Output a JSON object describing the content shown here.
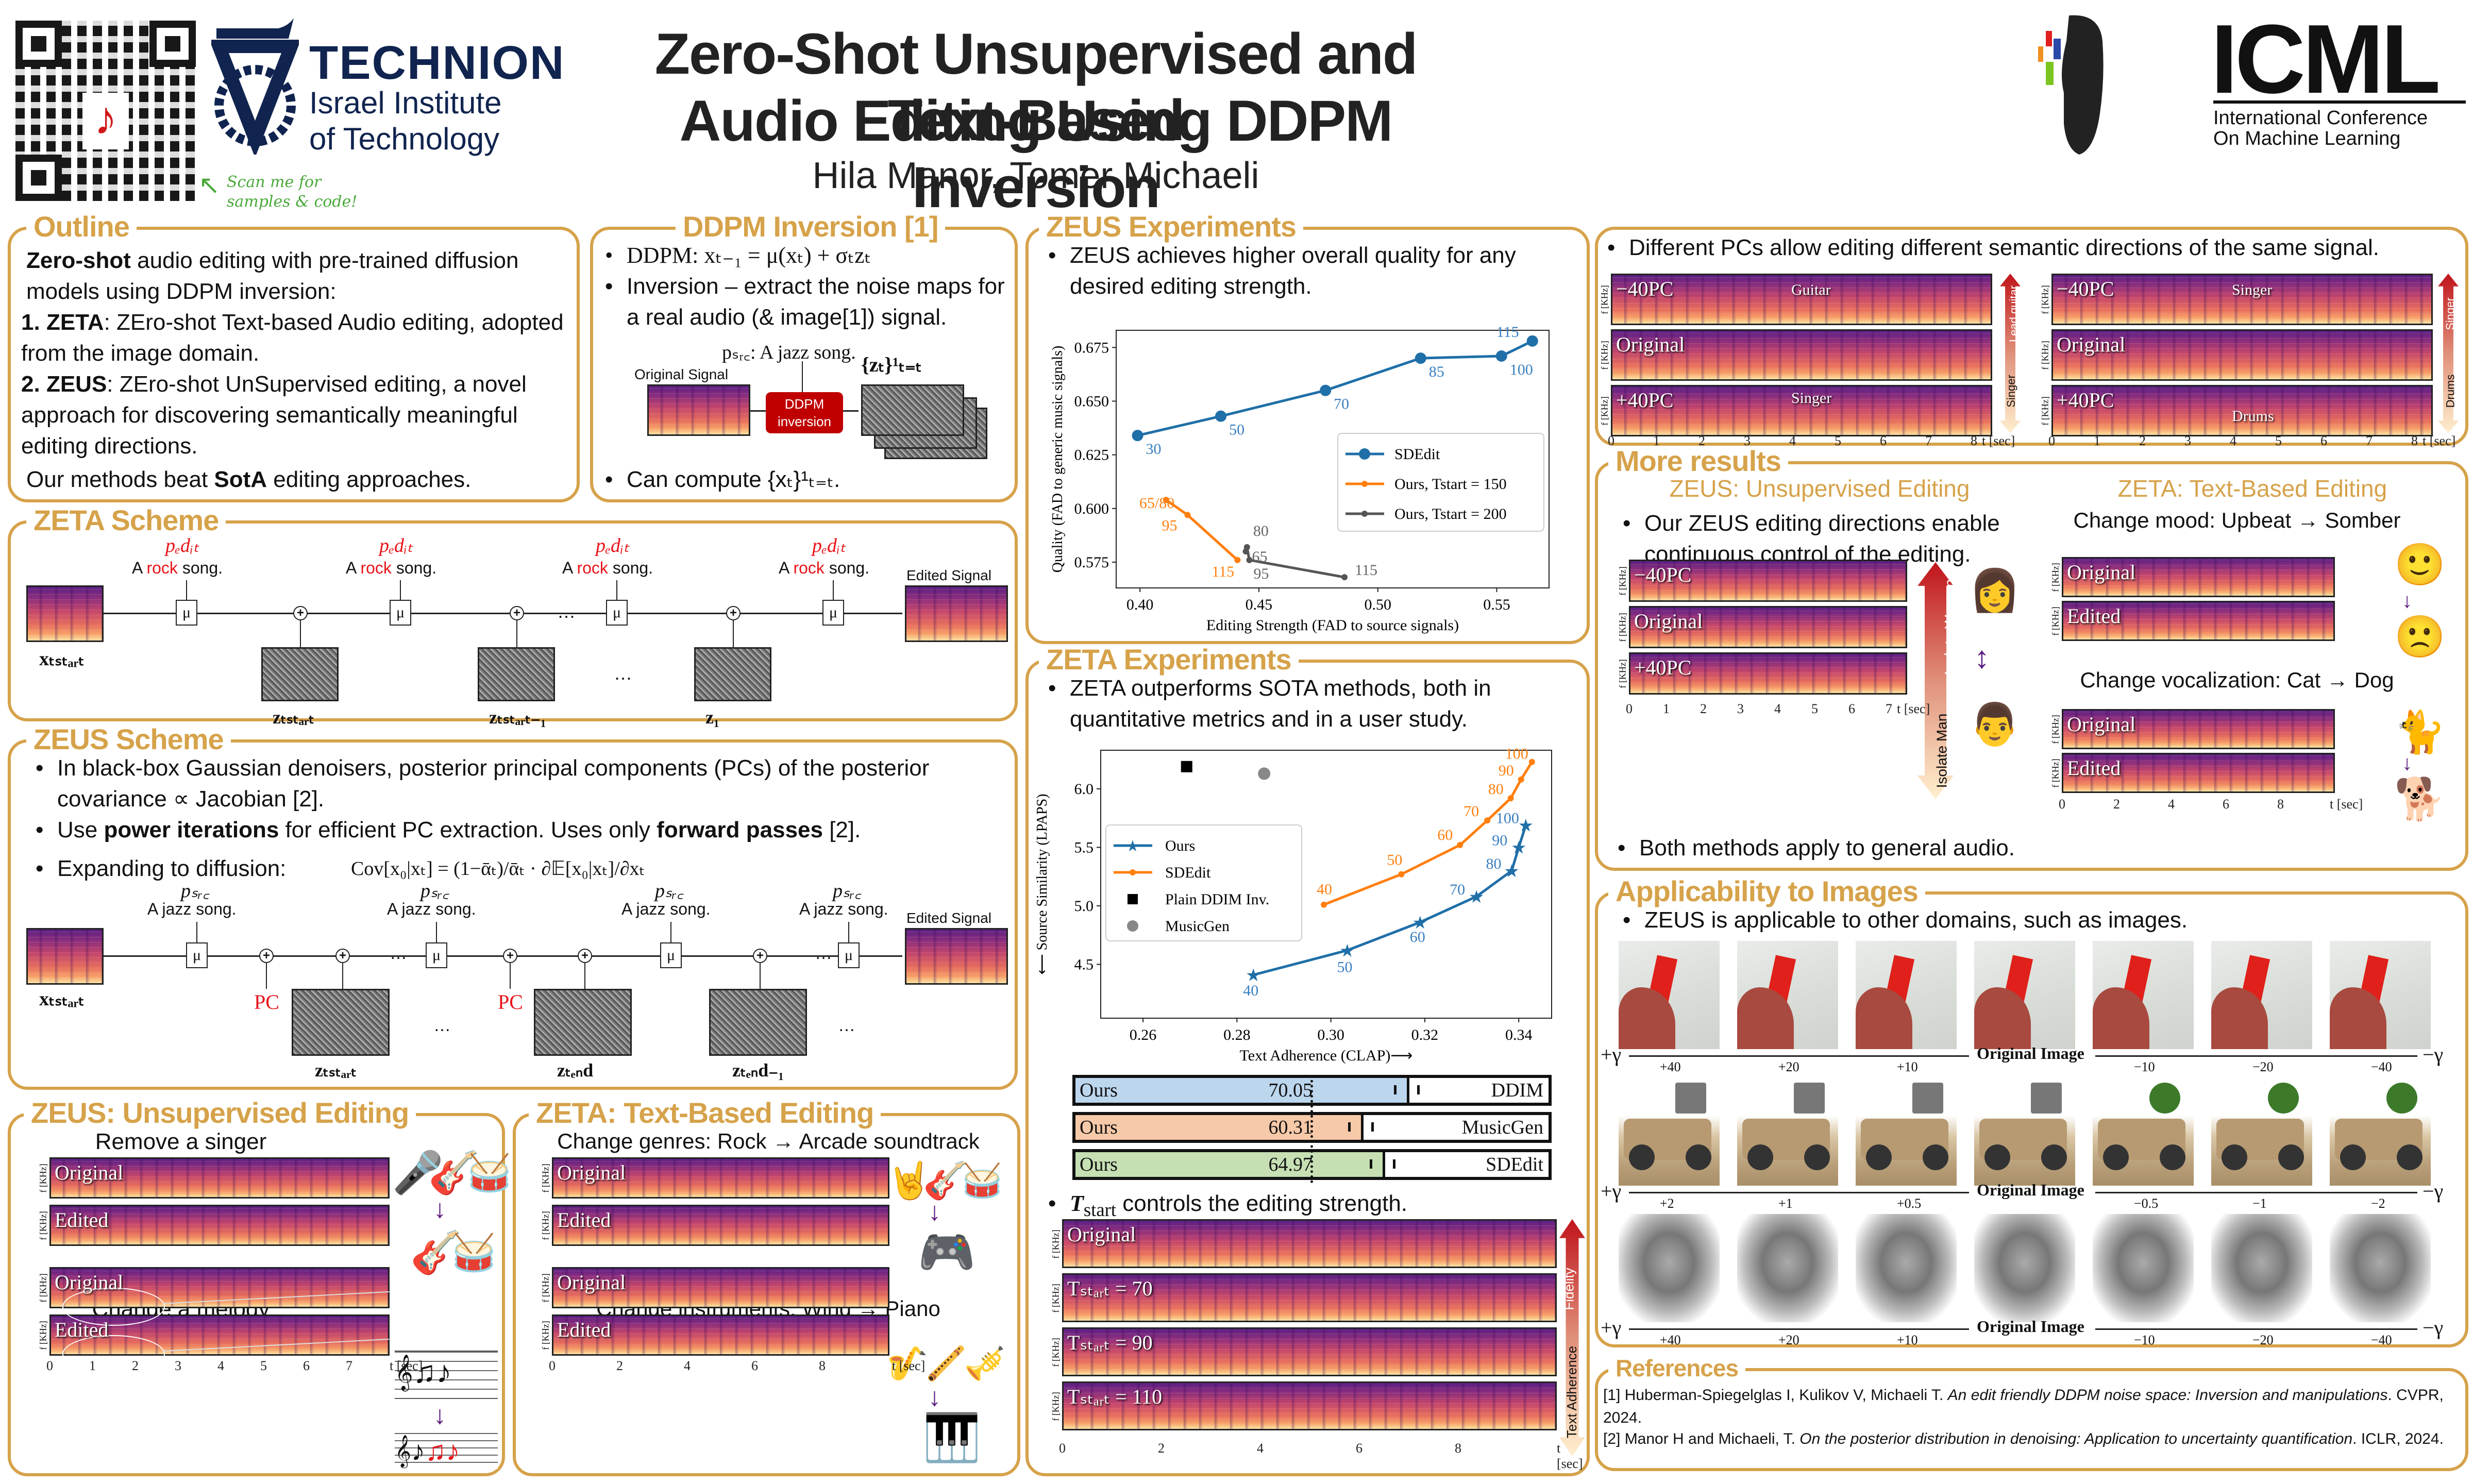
{
  "header": {
    "title_line1": "Zero-Shot Unsupervised and Text-Based",
    "title_line2": "Audio Editing Using DDPM Inversion",
    "authors": "Hila Manor, Tomer Michaeli",
    "qr_caption_line1": "Scan me for",
    "qr_caption_line2": "samples & code!",
    "technion_name": "TECHNION",
    "technion_sub1": "Israel Institute",
    "technion_sub2": "of Technology",
    "icml_name": "ICML",
    "icml_sub1": "International Conference",
    "icml_sub2": "On Machine Learning"
  },
  "outline": {
    "title": "Outline",
    "intro_bold": "Zero-shot",
    "intro_rest": " audio editing with pre-trained diffusion models using DDPM inversion:",
    "item1_num": "1.",
    "item1_bold": "ZETA",
    "item1_rest": ": ZEro-shot Text-based Audio editing, adopted from the image domain.",
    "item2_num": "2.",
    "item2_bold": "ZEUS",
    "item2_rest": ": ZEro-shot UnSupervised editing, a novel approach for discovering semantically meaningful editing directions.",
    "closing_pre": "Our methods beat ",
    "closing_bold": "SotA",
    "closing_post": " editing approaches."
  },
  "ddpm_inversion": {
    "title": "DDPM Inversion [1]",
    "bullet1": "DDPM: xₜ₋₁ = μ(xₜ) + σₜzₜ",
    "bullet2": "Inversion – extract the noise maps for a real audio (& image[1]) signal.",
    "psrc_label": "pₛᵣ꜀: A jazz song.",
    "original_signal": "Original Signal",
    "block_label_line1": "DDPM",
    "block_label_line2": "inversion",
    "noise_label": "{zₜ}¹ₜ₌ₜ",
    "bullet3": "Can compute {xₜ}¹ₜ₌ₜ."
  },
  "zeta_scheme": {
    "title": "ZETA Scheme",
    "p_edit": "pₑdᵢₜ",
    "prompt_pre": "A ",
    "prompt_red": "rock",
    "prompt_post": " song.",
    "edited_signal": "Edited Signal",
    "x_label": "xₜₛₜₐᵣₜ",
    "noise_labels": [
      "zₜₛₜₐᵣₜ",
      "zₜₛₜₐᵣₜ₋₁",
      "z₁"
    ],
    "ellipsis": "…",
    "mu": "μ",
    "plus": "+"
  },
  "zeus_scheme": {
    "title": "ZEUS Scheme",
    "bullet1": "In black-box Gaussian denoisers, posterior principal components (PCs) of the posterior covariance ∝ Jacobian [2].",
    "bullet2_pre": "Use ",
    "bullet2_bold1": "power iterations",
    "bullet2_mid": " for efficient PC extraction. Uses only ",
    "bullet2_bold2": "forward passes",
    "bullet2_post": " [2].",
    "bullet3": "Expanding to diffusion:",
    "formula": "Cov[x₀|xₜ] = (1−ᾱₜ)/ᾱₜ · ∂𝔼[x₀|xₜ]/∂xₜ",
    "p_src": "pₛᵣ꜀",
    "prompt": "A jazz song.",
    "edited_signal": "Edited Signal",
    "pc_label": "PC",
    "x_label": "xₜₛₜₐᵣₜ",
    "noise_labels": [
      "zₜₛₜₐᵣₜ",
      "zₜₑₙd",
      "zₜₑₙd₋₁"
    ],
    "ellipsis": "…",
    "mu": "μ",
    "plus": "+"
  },
  "zeus_editing": {
    "title": "ZEUS: Unsupervised Editing",
    "example1_title": "Remove a singer",
    "example2_title": "Change a melody",
    "label_original": "Original",
    "label_edited": "Edited",
    "y_axis": "f [KHz]",
    "y_ticks": [
      "0",
      "5"
    ],
    "x_ticks": [
      "0",
      "1",
      "2",
      "3",
      "4",
      "5",
      "6",
      "7"
    ],
    "x_unit": "t [sec]",
    "icons_before": [
      "microphone-icon",
      "guitar-icon",
      "drums-icon"
    ],
    "icons_after": [
      "guitar-icon",
      "drums-icon"
    ]
  },
  "zeta_editing": {
    "title": "ZETA: Text-Based Editing",
    "example1_title": "Change genres: Rock → Arcade soundtrack",
    "example2_title": "Change instruments: Wind → Piano",
    "label_original": "Original",
    "label_edited": "Edited",
    "y_axis": "f [KHz]",
    "y_ticks": [
      "0",
      "5"
    ],
    "x_ticks": [
      "0",
      "2",
      "4",
      "6",
      "8"
    ],
    "x_unit": "t [sec]",
    "icons_before_1": [
      "rock-hand-icon",
      "guitar-icon",
      "drums-icon"
    ],
    "icons_after_1": [
      "gamepad-icon"
    ],
    "icons_before_2": [
      "clarinet-icon",
      "flute-icon",
      "trumpet-icon"
    ],
    "icons_after_2": [
      "piano-icon"
    ]
  },
  "zeus_experiments": {
    "title": "ZEUS Experiments",
    "bullet": "ZEUS achieves higher overall quality for any desired editing strength."
  },
  "zeta_experiments": {
    "title": "ZETA Experiments",
    "bullet": "ZETA outperforms SOTA methods, both in quantitative metrics and in a user study.",
    "user_study": [
      {
        "left": "Ours",
        "value": "70.05",
        "right": "DDIM",
        "pct": 70.05,
        "color": "#bcd6ee"
      },
      {
        "left": "Ours",
        "value": "60.31",
        "right": "MusicGen",
        "pct": 60.31,
        "color": "#f6c9a8"
      },
      {
        "left": "Ours",
        "value": "64.97",
        "right": "SDEdit",
        "pct": 64.97,
        "color": "#c6e0b4"
      }
    ],
    "tstart_bullet_T": "T",
    "tstart_bullet_sub": "start",
    "tstart_bullet_rest": " controls the editing strength.",
    "tstart_labels": [
      "Original",
      "Tₛₜₐᵣₜ = 70",
      "Tₛₜₐᵣₜ = 90",
      "Tₛₜₐᵣₜ = 110"
    ],
    "arrow_top": "Fidelity",
    "arrow_bottom": "Text Adherence",
    "y_axis": "f [KHz]",
    "x_ticks": [
      "0",
      "2",
      "4",
      "6",
      "8"
    ],
    "x_unit": "t [sec]"
  },
  "pcs_section": {
    "bullet": "Different PCs allow editing different semantic directions of the same signal.",
    "left": {
      "labels": [
        "−40PC",
        "Original",
        "+40PC"
      ],
      "annot_top": "Guitar",
      "annot_bottom": "Singer",
      "arrow_top": "Lead guitar",
      "arrow_bottom": "Singer"
    },
    "right": {
      "labels": [
        "−40PC",
        "Original",
        "+40PC"
      ],
      "annot_top": "Singer",
      "annot_bottom": "Drums",
      "arrow_top": "Singer",
      "arrow_bottom": "Drums"
    },
    "x_ticks": [
      "0",
      "1",
      "2",
      "3",
      "4",
      "5",
      "6",
      "7",
      "8"
    ],
    "x_unit": "t [sec]",
    "y_axis": "f [KHz]"
  },
  "more_results": {
    "title": "More results",
    "left_subtitle": "ZEUS: Unsupervised Editing",
    "right_subtitle": "ZETA: Text-Based Editing",
    "left_bullet": "Our ZEUS editing directions enable continuous control of the editing.",
    "left_labels": [
      "−40PC",
      "Original",
      "+40PC"
    ],
    "arrow_top": "Isolate Woman",
    "arrow_bottom": "Isolate Man",
    "left_x_ticks": [
      "0",
      "1",
      "2",
      "3",
      "4",
      "5",
      "6",
      "7"
    ],
    "left_x_unit": "t [sec]",
    "bottom_bullet": "Both methods apply to general audio.",
    "mood_title": "Change mood: Upbeat → Somber",
    "vocal_title": "Change vocalization: Cat → Dog",
    "label_original": "Original",
    "label_edited": "Edited",
    "right_x_ticks": [
      "0",
      "2",
      "4",
      "6",
      "8"
    ],
    "right_x_unit": "t [sec]",
    "y_axis": "f [KHz]"
  },
  "images_section": {
    "title": "Applicability to Images",
    "bullet": "ZEUS is applicable to other domains, such as images.",
    "original_label": "Original Image",
    "plus_gamma": "+γ",
    "minus_gamma": "−γ",
    "rows": [
      {
        "kind": "bird",
        "ticks": [
          "+40",
          "+20",
          "+10",
          "−10",
          "−20",
          "−40"
        ]
      },
      {
        "kind": "jeep",
        "ticks": [
          "+2",
          "+1",
          "+0.5",
          "−0.5",
          "−1",
          "−2"
        ]
      },
      {
        "kind": "cat",
        "ticks": [
          "+40",
          "+20",
          "+10",
          "−10",
          "−20",
          "−40"
        ]
      }
    ]
  },
  "references": {
    "title": "References",
    "ref1_pre": "[1] Huberman-Spiegelglas I, Kulikov V, Michaeli T. ",
    "ref1_italic": "An edit friendly DDPM noise space: Inversion and manipulations",
    "ref1_post": ". CVPR, 2024.",
    "ref2_pre": "[2] Manor H and Michaeli, T. ",
    "ref2_italic": "On the posterior distribution in denoising: Application to uncertainty quantification",
    "ref2_post": ". ICLR, 2024."
  },
  "colors": {
    "accent": "#d6a24a",
    "icon_purple": "#5a1a82",
    "blue": "#1f77b4",
    "orange": "#ff7f0e",
    "gray": "#555555",
    "red": "#e8141b"
  },
  "chart_data": [
    {
      "type": "line",
      "title": "",
      "xlabel": "Editing Strength (FAD to source signals)",
      "ylabel": "Quality (FAD to generic music signals)",
      "xlim": [
        0.39,
        0.572
      ],
      "ylim": [
        0.563,
        0.683
      ],
      "xticks": [
        0.4,
        0.45,
        0.5,
        0.55
      ],
      "yticks": [
        0.575,
        0.6,
        0.625,
        0.65,
        0.675
      ],
      "xtick_labels": [
        "0.40",
        "0.45",
        "0.50",
        "0.55"
      ],
      "ytick_labels": [
        "0.575",
        "0.600",
        "0.625",
        "0.650",
        "0.675"
      ],
      "legend_position": "center-right",
      "series": [
        {
          "name": "SDEdit",
          "color": "#1f6fa8",
          "marker": "circle-large",
          "x": [
            0.399,
            0.434,
            0.478,
            0.518,
            0.552,
            0.565
          ],
          "y": [
            0.634,
            0.643,
            0.655,
            0.67,
            0.671,
            0.678
          ],
          "labels": [
            "30",
            "50",
            "70",
            "85",
            "100",
            "115"
          ]
        },
        {
          "name": "Ours, T_start = 150",
          "color": "#ff7f0e",
          "marker": "circle-small",
          "x": [
            0.411,
            0.42,
            0.441
          ],
          "y": [
            0.604,
            0.597,
            0.576
          ],
          "labels": [
            "65/80",
            "95",
            "115"
          ]
        },
        {
          "name": "Ours, T_start = 200",
          "color": "#555555",
          "marker": "circle-small",
          "x": [
            0.4445,
            0.445,
            0.446,
            0.486
          ],
          "y": [
            0.58,
            0.582,
            0.576,
            0.568
          ],
          "labels": [
            "65",
            "80",
            "95",
            "115"
          ]
        }
      ]
    },
    {
      "type": "line",
      "title": "",
      "xlabel": "Text Adherence (CLAP)⟶",
      "ylabel": "⟵ Source Similarity (LPAPS)",
      "xlim": [
        0.251,
        0.347
      ],
      "ylim": [
        4.04,
        6.33
      ],
      "xticks": [
        0.26,
        0.28,
        0.3,
        0.32,
        0.34
      ],
      "yticks": [
        4.5,
        5.0,
        5.5,
        6.0
      ],
      "xtick_labels": [
        "0.26",
        "0.28",
        "0.30",
        "0.32",
        "0.34"
      ],
      "ytick_labels": [
        "4.5",
        "5.0",
        "5.5",
        "6.0"
      ],
      "legend_position": "center-left",
      "series": [
        {
          "name": "Ours",
          "color": "#1f6fa8",
          "marker": "star",
          "x": [
            0.2835,
            0.3035,
            0.319,
            0.331,
            0.3385,
            0.34,
            0.3415
          ],
          "y": [
            4.41,
            4.62,
            4.86,
            5.08,
            5.3,
            5.5,
            5.69
          ],
          "labels": [
            "40",
            "50",
            "60",
            "70",
            "80",
            "90",
            "100"
          ]
        },
        {
          "name": "SDEdit",
          "color": "#ff7f0e",
          "marker": "circle-small",
          "x": [
            0.2985,
            0.315,
            0.3275,
            0.3333,
            0.3383,
            0.3405,
            0.3428
          ],
          "y": [
            5.01,
            5.27,
            5.52,
            5.73,
            5.92,
            6.08,
            6.23
          ],
          "labels": [
            "40",
            "50",
            "60",
            "70",
            "80",
            "90",
            "100"
          ]
        },
        {
          "name": "Plain DDIM Inv.",
          "color": "#000000",
          "marker": "square",
          "x": [
            0.2693
          ],
          "y": [
            6.19
          ],
          "labels": []
        },
        {
          "name": "MusicGen",
          "color": "#888888",
          "marker": "circle-gray",
          "x": [
            0.2858
          ],
          "y": [
            6.13
          ],
          "labels": []
        }
      ]
    }
  ]
}
